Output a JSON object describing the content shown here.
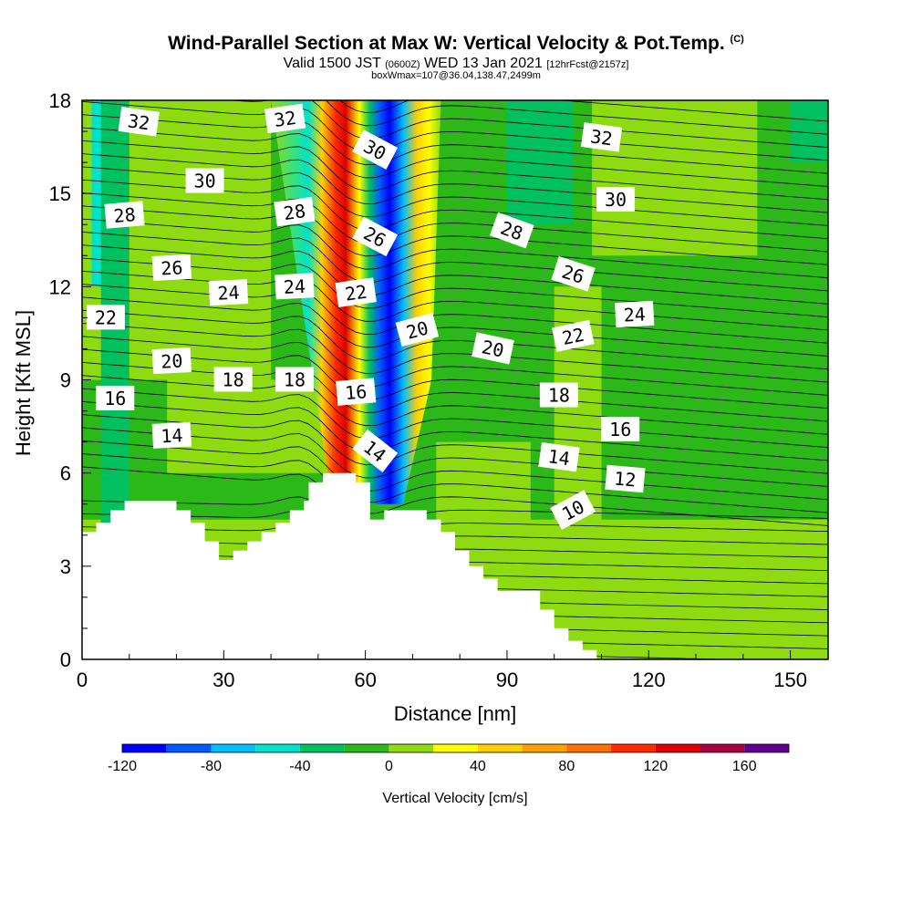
{
  "header": {
    "title": "Wind-Parallel Section at Max W: Vertical Velocity & Pot.Temp.",
    "copyright": "(C)",
    "valid_main": "Valid 1500 JST",
    "valid_utc": "(0600Z)",
    "valid_date": "WED 13 Jan 2021",
    "forecast": "[12hrFcst@2157z]",
    "box_info": "boxWmax=107@36.04,138.47,2499m"
  },
  "chart_data": {
    "type": "heatmap",
    "xlabel": "Distance [nm]",
    "ylabel": "Height [Kft MSL]",
    "xlim": [
      0,
      158
    ],
    "ylim": [
      0,
      18
    ],
    "x_ticks": [
      "0",
      "30",
      "60",
      "90",
      "120",
      "150"
    ],
    "y_ticks": [
      "0",
      "3",
      "6",
      "9",
      "12",
      "15",
      "18"
    ],
    "colorbar": {
      "label": "Vertical Velocity [cm/s]",
      "ticks": [
        "-120",
        "-80",
        "-40",
        "0",
        "40",
        "80",
        "120",
        "160"
      ],
      "levels": [
        -120,
        -100,
        -80,
        -60,
        -40,
        -20,
        0,
        20,
        40,
        60,
        80,
        100,
        120,
        140,
        160,
        180
      ],
      "colors": [
        "#0000ff",
        "#005aff",
        "#00bfff",
        "#00e3c9",
        "#00c060",
        "#2db81a",
        "#8edb12",
        "#ffff00",
        "#ffd000",
        "#ffa000",
        "#ff7000",
        "#ff2a00",
        "#dd0000",
        "#a80040",
        "#600090"
      ]
    },
    "terrain": [
      [
        0,
        4.1
      ],
      [
        3,
        4.1
      ],
      [
        3,
        4.4
      ],
      [
        6,
        4.4
      ],
      [
        6,
        4.8
      ],
      [
        9,
        4.8
      ],
      [
        9,
        5.1
      ],
      [
        20,
        5.1
      ],
      [
        20,
        4.8
      ],
      [
        23,
        4.8
      ],
      [
        23,
        4.4
      ],
      [
        26,
        4.4
      ],
      [
        26,
        3.8
      ],
      [
        29,
        3.8
      ],
      [
        29,
        3.2
      ],
      [
        32,
        3.2
      ],
      [
        32,
        3.5
      ],
      [
        35,
        3.5
      ],
      [
        35,
        3.8
      ],
      [
        38,
        3.8
      ],
      [
        38,
        4.1
      ],
      [
        41,
        4.1
      ],
      [
        41,
        4.4
      ],
      [
        44,
        4.4
      ],
      [
        44,
        4.8
      ],
      [
        47,
        4.8
      ],
      [
        47,
        5.1
      ],
      [
        48,
        5.1
      ],
      [
        48,
        5.7
      ],
      [
        51,
        5.7
      ],
      [
        51,
        6.0
      ],
      [
        58,
        6.0
      ],
      [
        58,
        5.7
      ],
      [
        61,
        5.7
      ],
      [
        61,
        4.5
      ],
      [
        64,
        4.5
      ],
      [
        64,
        4.8
      ],
      [
        73,
        4.8
      ],
      [
        73,
        4.5
      ],
      [
        76,
        4.5
      ],
      [
        76,
        4.1
      ],
      [
        79,
        4.1
      ],
      [
        79,
        3.5
      ],
      [
        82,
        3.5
      ],
      [
        82,
        3.0
      ],
      [
        85,
        3.0
      ],
      [
        85,
        2.6
      ],
      [
        88,
        2.6
      ],
      [
        88,
        2.2
      ],
      [
        97,
        2.2
      ],
      [
        97,
        1.6
      ],
      [
        100,
        1.6
      ],
      [
        100,
        1.0
      ],
      [
        103,
        1.0
      ],
      [
        103,
        0.6
      ],
      [
        106,
        0.6
      ],
      [
        106,
        0.3
      ],
      [
        109,
        0.3
      ],
      [
        109,
        0.0
      ]
    ],
    "contour_labels": [
      {
        "text": "32",
        "x": 12,
        "y": 17.3,
        "rot": 8
      },
      {
        "text": "32",
        "x": 43,
        "y": 17.4,
        "rot": -8
      },
      {
        "text": "30",
        "x": 62,
        "y": 16.4,
        "rot": 28
      },
      {
        "text": "32",
        "x": 110,
        "y": 16.8,
        "rot": 8
      },
      {
        "text": "30",
        "x": 26,
        "y": 15.4,
        "rot": 0
      },
      {
        "text": "30",
        "x": 113,
        "y": 14.8,
        "rot": 0
      },
      {
        "text": "28",
        "x": 9,
        "y": 14.3,
        "rot": -5
      },
      {
        "text": "28",
        "x": 45,
        "y": 14.4,
        "rot": -8
      },
      {
        "text": "26",
        "x": 62,
        "y": 13.6,
        "rot": 28
      },
      {
        "text": "28",
        "x": 91,
        "y": 13.8,
        "rot": 20
      },
      {
        "text": "26",
        "x": 19,
        "y": 12.6,
        "rot": -3
      },
      {
        "text": "26",
        "x": 104,
        "y": 12.4,
        "rot": 18
      },
      {
        "text": "24",
        "x": 31,
        "y": 11.8,
        "rot": -3
      },
      {
        "text": "24",
        "x": 45,
        "y": 12.0,
        "rot": -3
      },
      {
        "text": "22",
        "x": 58,
        "y": 11.8,
        "rot": -8
      },
      {
        "text": "22",
        "x": 5,
        "y": 11.0,
        "rot": 0
      },
      {
        "text": "24",
        "x": 117,
        "y": 11.1,
        "rot": -3
      },
      {
        "text": "20",
        "x": 71,
        "y": 10.6,
        "rot": -15
      },
      {
        "text": "22",
        "x": 104,
        "y": 10.4,
        "rot": -12
      },
      {
        "text": "20",
        "x": 87,
        "y": 10.0,
        "rot": 12
      },
      {
        "text": "20",
        "x": 19,
        "y": 9.6,
        "rot": -3
      },
      {
        "text": "18",
        "x": 32,
        "y": 9.0,
        "rot": 0
      },
      {
        "text": "18",
        "x": 45,
        "y": 9.0,
        "rot": 0
      },
      {
        "text": "16",
        "x": 58,
        "y": 8.6,
        "rot": -5
      },
      {
        "text": "18",
        "x": 101,
        "y": 8.5,
        "rot": 0
      },
      {
        "text": "16",
        "x": 7,
        "y": 8.4,
        "rot": 0
      },
      {
        "text": "16",
        "x": 114,
        "y": 7.4,
        "rot": 0
      },
      {
        "text": "14",
        "x": 19,
        "y": 7.2,
        "rot": -3
      },
      {
        "text": "14",
        "x": 62,
        "y": 6.7,
        "rot": 38
      },
      {
        "text": "14",
        "x": 101,
        "y": 6.5,
        "rot": 8
      },
      {
        "text": "12",
        "x": 115,
        "y": 5.8,
        "rot": 5
      },
      {
        "text": "10",
        "x": 104,
        "y": 4.8,
        "rot": -28
      }
    ]
  }
}
